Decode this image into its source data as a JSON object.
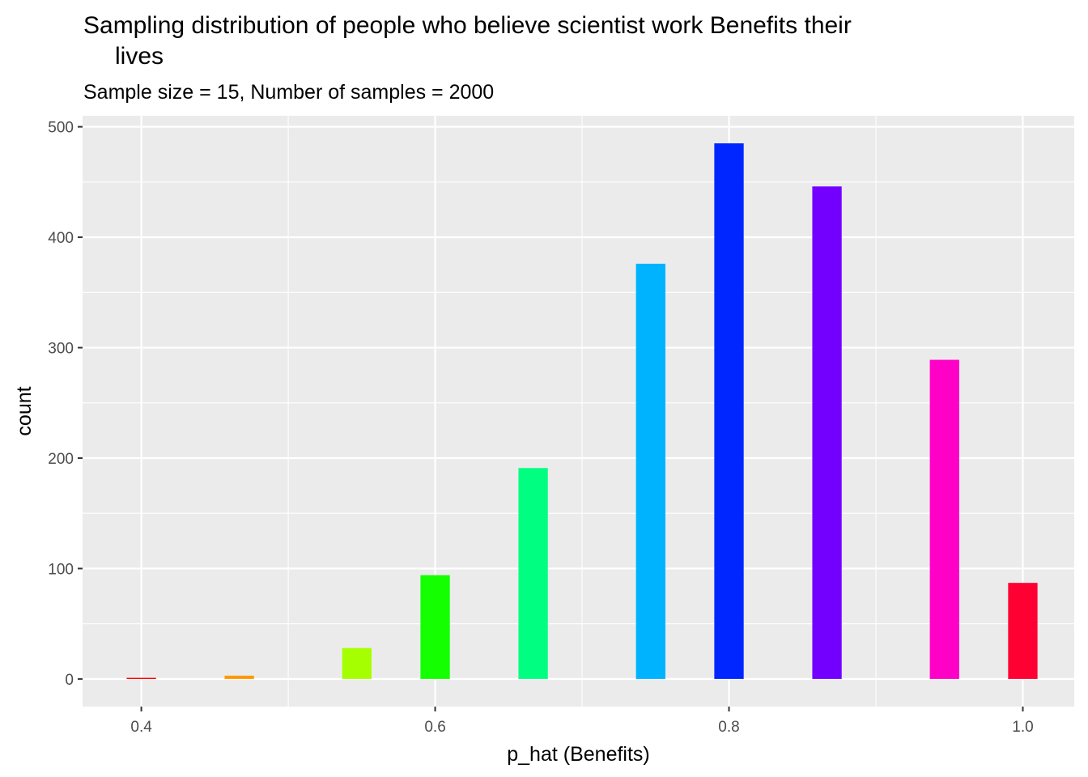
{
  "chart_data": {
    "type": "bar",
    "title_lines": [
      "Sampling distribution of people who believe scientist work Benefits their",
      "lives"
    ],
    "subtitle": "Sample size = 15, Number of samples = 2000",
    "xlabel": "p_hat (Benefits)",
    "ylabel": "count",
    "xlim": [
      0.36,
      1.035
    ],
    "ylim": [
      -25,
      510
    ],
    "x_ticks": [
      {
        "value": 0.4,
        "label": "0.4"
      },
      {
        "value": 0.6,
        "label": "0.6"
      },
      {
        "value": 0.8,
        "label": "0.8"
      },
      {
        "value": 1.0,
        "label": "1.0"
      }
    ],
    "x_minor_ticks": [
      0.5,
      0.7,
      0.9
    ],
    "y_ticks": [
      {
        "value": 0,
        "label": "0"
      },
      {
        "value": 100,
        "label": "100"
      },
      {
        "value": 200,
        "label": "200"
      },
      {
        "value": 300,
        "label": "300"
      },
      {
        "value": 400,
        "label": "400"
      },
      {
        "value": 500,
        "label": "500"
      }
    ],
    "y_minor_ticks": [
      50,
      150,
      250,
      350,
      450
    ],
    "bar_width": 0.02,
    "bars": [
      {
        "x": 0.4,
        "count": 1,
        "color": "#FF0000"
      },
      {
        "x": 0.4667,
        "count": 3,
        "color": "#FF9900"
      },
      {
        "x": 0.5467,
        "count": 28,
        "color": "#A6FF00"
      },
      {
        "x": 0.6,
        "count": 94,
        "color": "#14FF00"
      },
      {
        "x": 0.6667,
        "count": 191,
        "color": "#00FF80"
      },
      {
        "x": 0.7467,
        "count": 376,
        "color": "#00B3FF"
      },
      {
        "x": 0.8,
        "count": 485,
        "color": "#0026FF"
      },
      {
        "x": 0.8667,
        "count": 446,
        "color": "#7300FF"
      },
      {
        "x": 0.9467,
        "count": 289,
        "color": "#FF00C7"
      },
      {
        "x": 1.0,
        "count": 87,
        "color": "#FF0033"
      }
    ],
    "panel_background": "#EBEBEB",
    "grid_color": "#FFFFFF",
    "grid": true,
    "legend": "none"
  }
}
